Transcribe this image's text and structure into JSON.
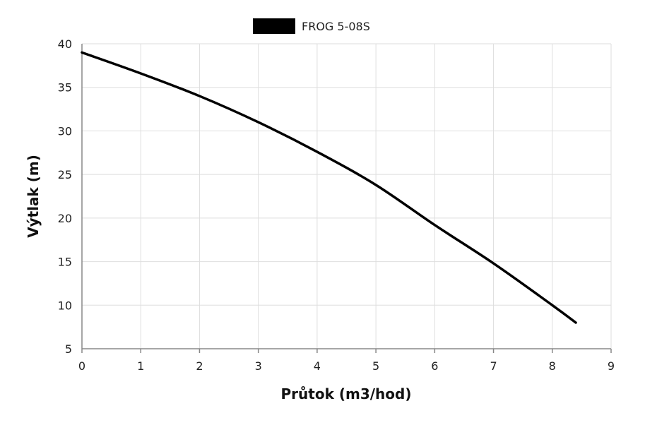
{
  "chart_data": {
    "type": "line",
    "title": "",
    "xlabel": "Průtok (m3/hod)",
    "ylabel": "Výtlak (m)",
    "xlim": [
      0,
      9
    ],
    "ylim": [
      5,
      40
    ],
    "x_ticks": [
      0,
      1,
      2,
      3,
      4,
      5,
      6,
      7,
      8,
      9
    ],
    "y_ticks": [
      5,
      10,
      15,
      20,
      25,
      30,
      35,
      40
    ],
    "grid": true,
    "legend_position": "top-center",
    "series": [
      {
        "name": "FROG 5-08S",
        "color": "#000000",
        "x": [
          0,
          1,
          2,
          3,
          4,
          5,
          6,
          7,
          8,
          8.4
        ],
        "y": [
          39,
          36.6,
          34,
          31,
          27.6,
          23.8,
          19.2,
          14.8,
          10,
          8
        ]
      }
    ]
  }
}
